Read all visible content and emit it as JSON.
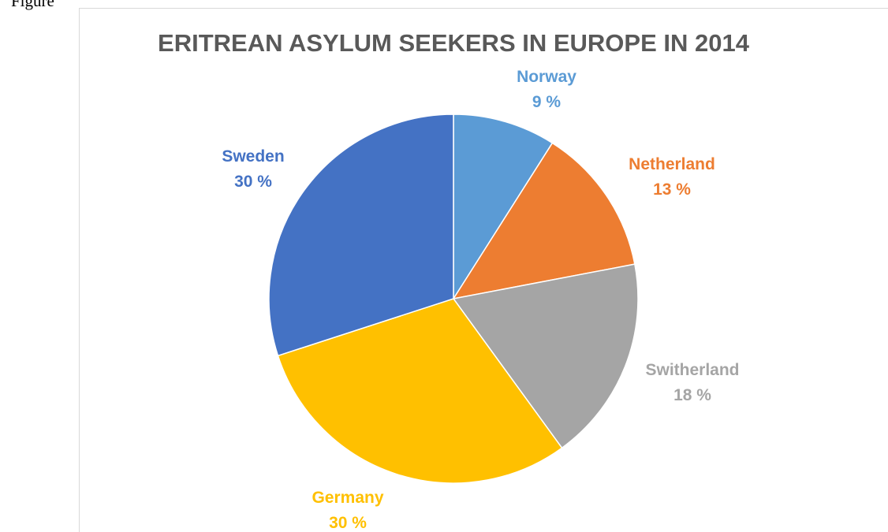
{
  "header_fragment": "Figure",
  "chart_data": {
    "type": "pie",
    "title": "ERITREAN ASYLUM SEEKERS IN EUROPE IN 2014",
    "slices": [
      {
        "label": "Norway",
        "value": 9,
        "value_label": "9 %",
        "color": "#5b9bd5"
      },
      {
        "label": "Netherland",
        "value": 13,
        "value_label": "13 %",
        "color": "#ed7d31"
      },
      {
        "label": "Switherland",
        "value": 18,
        "value_label": "18 %",
        "color": "#a5a5a5"
      },
      {
        "label": "Germany",
        "value": 30,
        "value_label": "30 %",
        "color": "#ffc000"
      },
      {
        "label": "Sweden",
        "value": 30,
        "value_label": "30 %",
        "color": "#4472c4"
      }
    ],
    "start_angle_deg": 0,
    "direction": "clockwise",
    "legend": "none",
    "data_labels": "outside"
  }
}
